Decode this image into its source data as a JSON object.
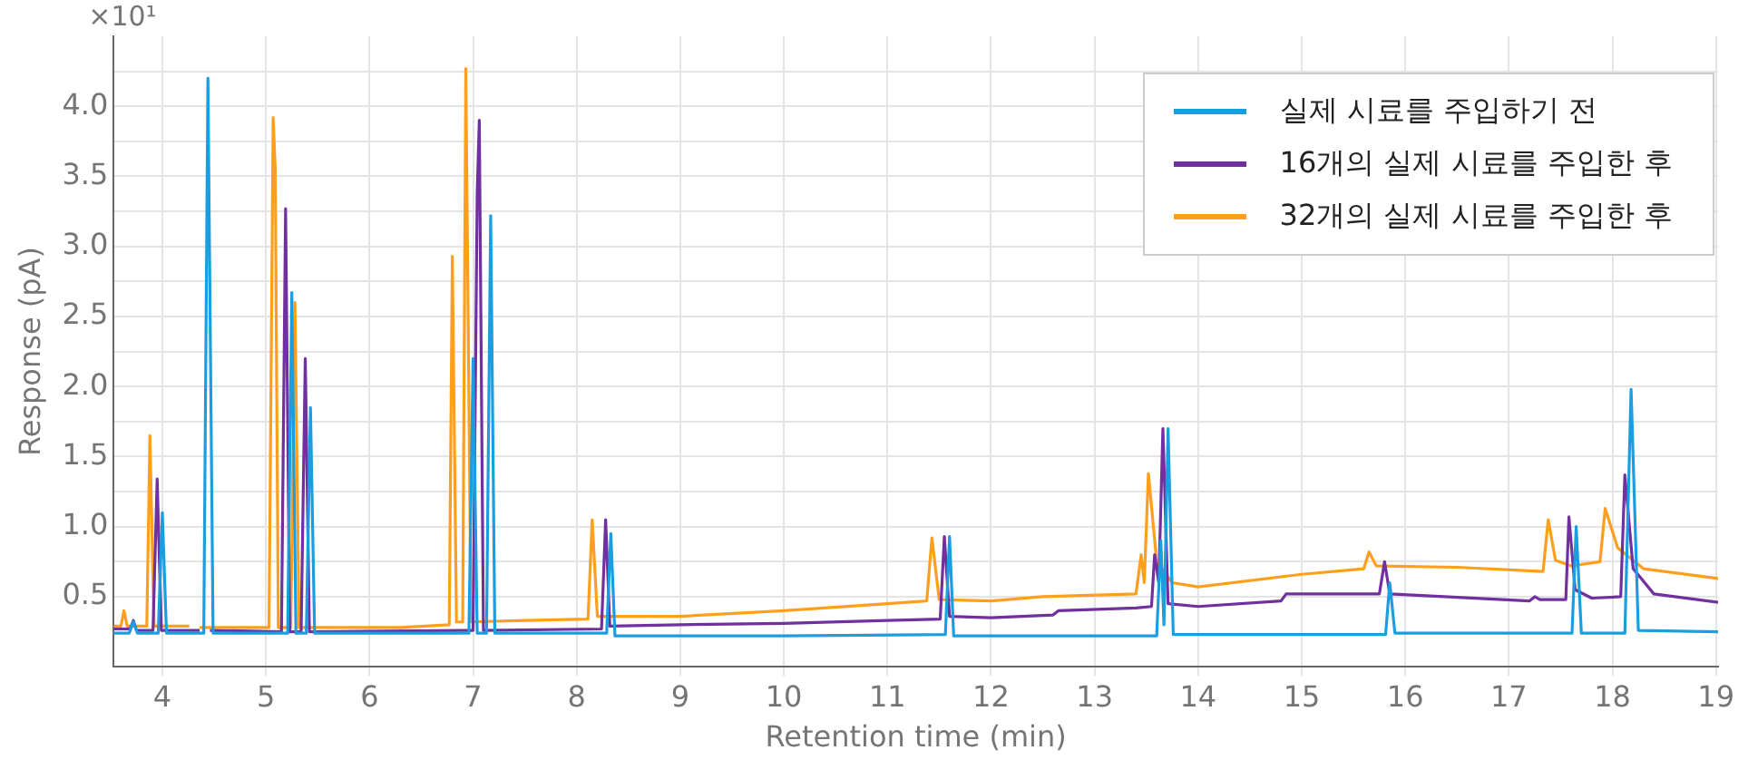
{
  "chart_data": {
    "type": "line",
    "xlabel": "Retention time (min)",
    "ylabel": "Response (pA)",
    "annotations": [
      "×10¹"
    ],
    "xlim": [
      3.53,
      19.02
    ],
    "ylim": [
      0,
      4.5
    ],
    "xticks": [
      4,
      5,
      6,
      7,
      8,
      9,
      10,
      11,
      12,
      13,
      14,
      15,
      16,
      17,
      18,
      19
    ],
    "yticks": [
      {
        "value": 0.5,
        "label": "0.5"
      },
      {
        "value": 0.75,
        "label": null
      },
      {
        "value": 1,
        "label": "1.0"
      },
      {
        "value": 1.25,
        "label": null
      },
      {
        "value": 1.5,
        "label": "1.5"
      },
      {
        "value": 1.75,
        "label": null
      },
      {
        "value": 2,
        "label": "2.0"
      },
      {
        "value": 2.25,
        "label": null
      },
      {
        "value": 2.5,
        "label": "2.5"
      },
      {
        "value": 2.75,
        "label": null
      },
      {
        "value": 3,
        "label": "3.0"
      },
      {
        "value": 3.25,
        "label": null
      },
      {
        "value": 3.5,
        "label": "3.5"
      },
      {
        "value": 3.75,
        "label": null
      },
      {
        "value": 4,
        "label": "4.0"
      },
      {
        "value": 4.25,
        "label": null
      }
    ],
    "grid": true,
    "legend": "top right",
    "marker": "none",
    "line_style": "solid",
    "series": [
      {
        "name": "실제 시료를 주입하기 전",
        "color": "#1a9ee0",
        "x": [
          3.53,
          3.68,
          3.72,
          3.76,
          3.96,
          4.0,
          4.04,
          4.4,
          4.44,
          4.49,
          5.21,
          5.25,
          5.29,
          5.39,
          5.43,
          5.47,
          6.96,
          7.0,
          7.04,
          7.13,
          7.17,
          7.21,
          8.29,
          8.33,
          8.37,
          10,
          11.56,
          11.6,
          11.64,
          13.6,
          13.64,
          13.67,
          13.71,
          13.76,
          15.81,
          15.85,
          15.9,
          17.61,
          17.65,
          17.7,
          18.12,
          18.18,
          18.25,
          19.02
        ],
        "values": [
          0.24,
          0.24,
          0.32,
          0.24,
          0.24,
          1.1,
          0.24,
          0.24,
          4.2,
          0.24,
          0.24,
          2.67,
          0.24,
          0.24,
          1.85,
          0.24,
          0.24,
          2.2,
          0.24,
          0.24,
          3.22,
          0.24,
          0.24,
          0.95,
          0.22,
          0.22,
          0.23,
          0.93,
          0.22,
          0.22,
          0.9,
          0.3,
          1.7,
          0.23,
          0.23,
          0.6,
          0.24,
          0.24,
          1.0,
          0.24,
          0.24,
          1.98,
          0.26,
          0.25
        ]
      },
      {
        "name": "16개의 실제 시료를 주입한 후",
        "color": "#7030a0",
        "x": [
          3.53,
          3.69,
          3.72,
          3.75,
          3.91,
          3.95,
          3.99,
          4.36,
          4.39,
          4.42,
          4.46,
          5.15,
          5.19,
          5.23,
          5.34,
          5.38,
          5.42,
          7.0,
          7.04,
          7.06,
          7.1,
          8.24,
          8.28,
          8.32,
          9,
          10,
          11,
          11.51,
          11.55,
          11.6,
          12,
          12.6,
          12.65,
          13.4,
          13.55,
          13.58,
          13.62,
          13.66,
          13.71,
          14,
          14.8,
          14.85,
          15.75,
          15.8,
          15.85,
          17.2,
          17.25,
          17.3,
          17.55,
          17.58,
          17.64,
          17.8,
          18.08,
          18.12,
          18.2,
          18.4,
          19.02
        ],
        "values": [
          0.27,
          0.27,
          0.33,
          0.26,
          0.26,
          1.34,
          0.26,
          0.26,
          null,
          null,
          0.26,
          0.25,
          3.27,
          0.25,
          0.25,
          2.2,
          0.25,
          0.26,
          3.38,
          3.9,
          0.26,
          0.27,
          1.05,
          0.29,
          0.3,
          0.31,
          0.33,
          0.34,
          0.93,
          0.36,
          0.35,
          0.37,
          0.4,
          0.42,
          0.43,
          0.8,
          0.6,
          1.7,
          0.45,
          0.43,
          0.47,
          0.52,
          0.52,
          0.75,
          0.52,
          0.47,
          0.5,
          0.48,
          0.48,
          1.07,
          0.55,
          0.49,
          0.5,
          1.37,
          0.7,
          0.52,
          0.46
        ]
      },
      {
        "name": "32개의 실제 시료를 주입한 후",
        "color": "#ff9f1c",
        "x": [
          3.53,
          3.6,
          3.63,
          3.66,
          3.85,
          3.88,
          3.92,
          4.26,
          4.29,
          4.33,
          4.36,
          5.03,
          5.07,
          5.09,
          5.12,
          5.24,
          5.28,
          5.32,
          6.3,
          6.77,
          6.8,
          6.84,
          6.9,
          6.93,
          6.98,
          7.5,
          8.11,
          8.15,
          8.2,
          9,
          10,
          11,
          11.38,
          11.43,
          11.5,
          12,
          12.5,
          13.4,
          13.45,
          13.48,
          13.52,
          13.6,
          13.75,
          14,
          15,
          15.6,
          15.65,
          15.72,
          16.5,
          17.33,
          17.38,
          17.45,
          17.6,
          17.88,
          17.93,
          18.05,
          18.3,
          19.02
        ],
        "values": [
          0.29,
          0.29,
          0.4,
          0.29,
          0.29,
          1.65,
          0.29,
          0.29,
          null,
          null,
          0.28,
          0.28,
          3.92,
          3.55,
          0.28,
          0.28,
          2.6,
          0.28,
          0.28,
          0.3,
          2.93,
          0.32,
          0.32,
          4.27,
          0.32,
          0.33,
          0.34,
          1.05,
          0.36,
          0.36,
          0.4,
          0.45,
          0.47,
          0.92,
          0.48,
          0.47,
          0.5,
          0.52,
          0.8,
          0.6,
          1.38,
          0.75,
          0.6,
          0.57,
          0.66,
          0.7,
          0.82,
          0.72,
          0.71,
          0.68,
          1.05,
          0.76,
          0.72,
          0.75,
          1.13,
          0.85,
          0.7,
          0.63
        ]
      }
    ]
  }
}
